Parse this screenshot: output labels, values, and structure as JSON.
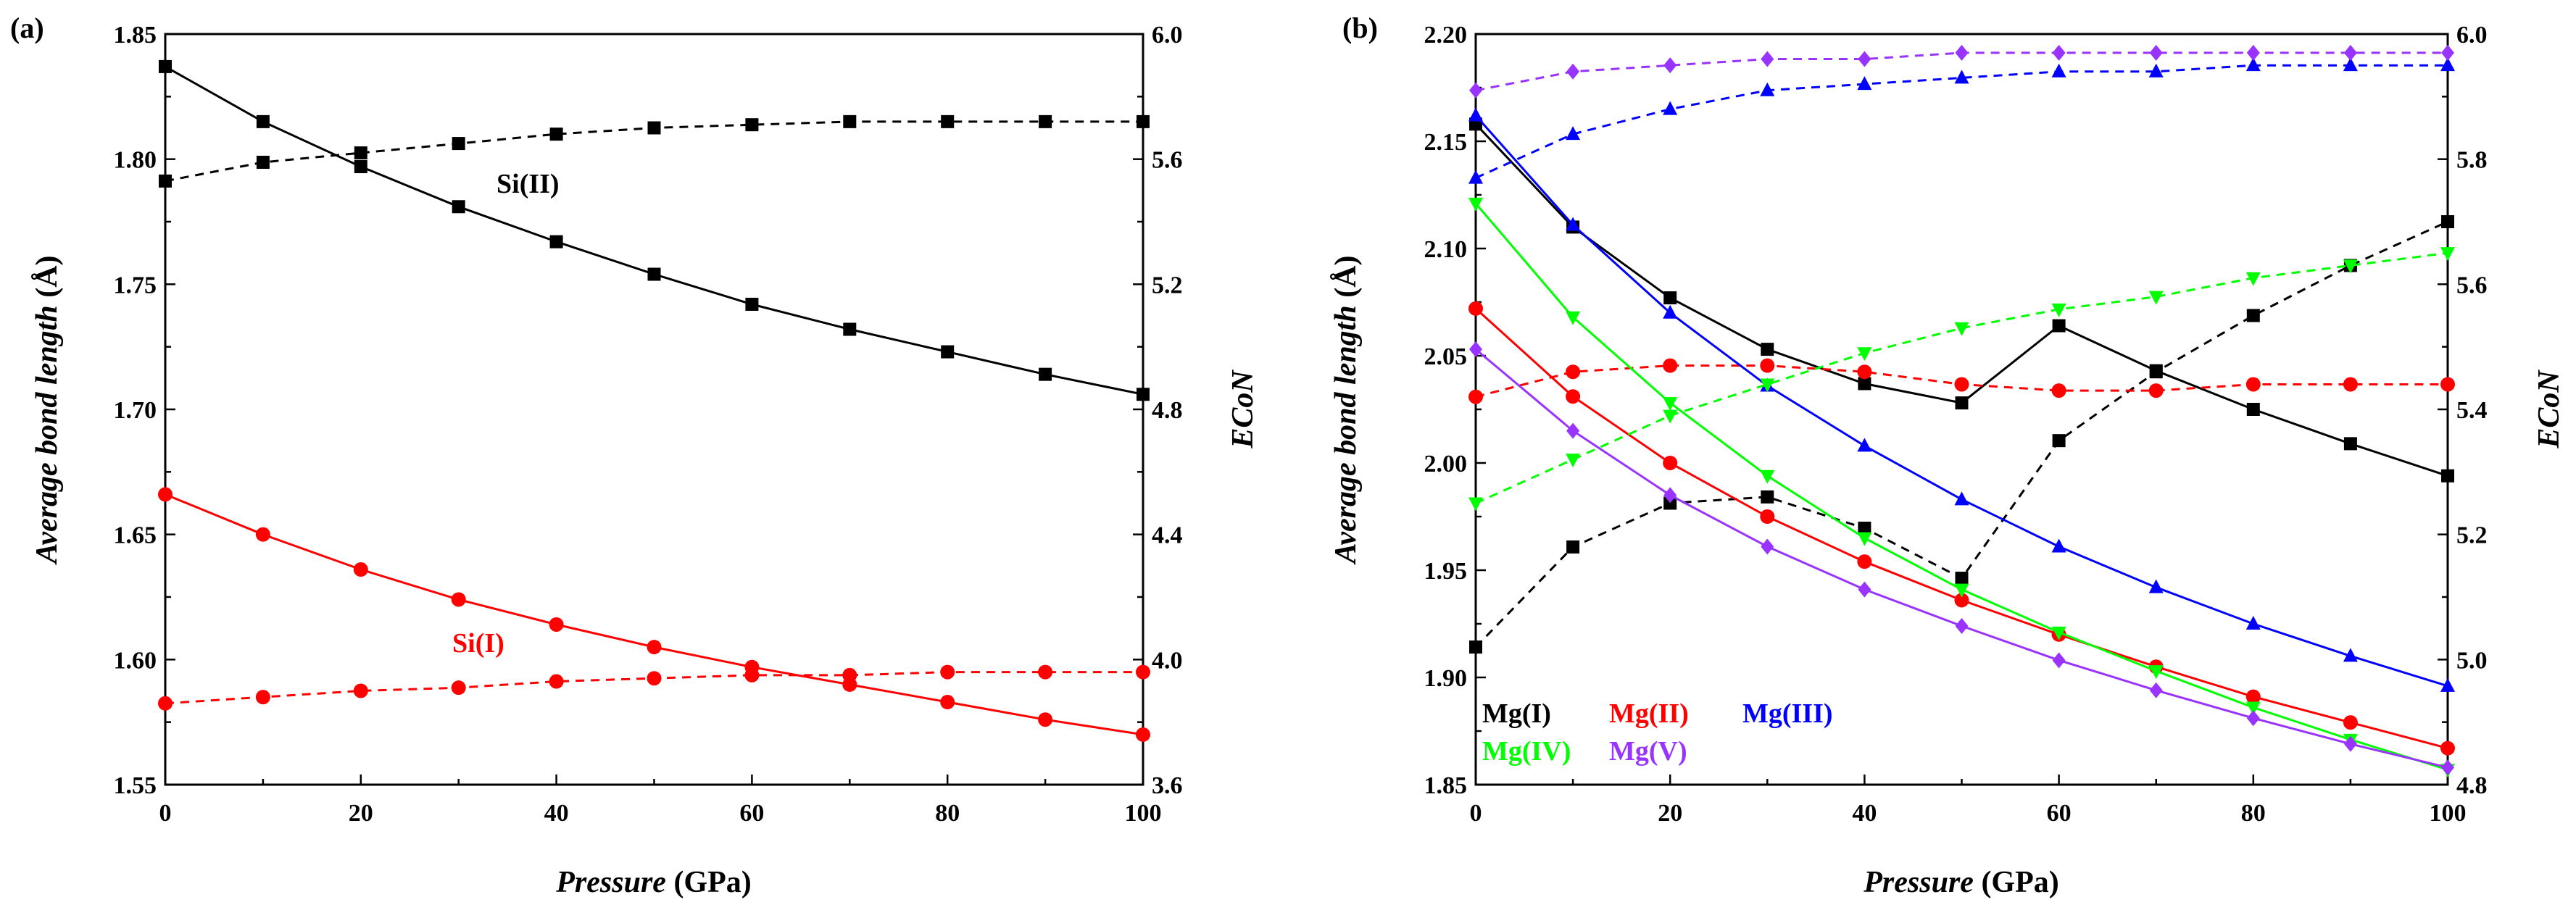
{
  "chart_data": [
    {
      "type": "line",
      "panel_label": "(a)",
      "xlabel_italic": "Pressure",
      "xlabel_unit": " (GPa)",
      "ylabel_left_italic": "Average bond length",
      "ylabel_left_unit": " (Å)",
      "ylabel_right": "ECoN",
      "xlim": [
        0,
        100
      ],
      "ylim_left": [
        1.55,
        1.85
      ],
      "ylim_right": [
        3.6,
        6.0
      ],
      "x_ticks": [
        "0",
        "20",
        "40",
        "60",
        "80",
        "100"
      ],
      "y_left_ticks": [
        "1.55",
        "1.60",
        "1.65",
        "1.70",
        "1.75",
        "1.80",
        "1.85"
      ],
      "y_right_ticks": [
        "3.6",
        "4.0",
        "4.4",
        "4.8",
        "5.2",
        "5.6",
        "6.0"
      ],
      "x": [
        0,
        10,
        20,
        30,
        40,
        50,
        60,
        70,
        80,
        90,
        100
      ],
      "series": [
        {
          "name": "Si(II) bond length",
          "axis": "left",
          "style": "solid",
          "color": "#000000",
          "marker": "square",
          "values": [
            1.837,
            1.815,
            1.797,
            1.781,
            1.767,
            1.754,
            1.742,
            1.732,
            1.723,
            1.714,
            1.706
          ]
        },
        {
          "name": "Si(II) ECoN",
          "axis": "right",
          "style": "dashed",
          "color": "#000000",
          "marker": "square",
          "values": [
            5.53,
            5.59,
            5.62,
            5.65,
            5.68,
            5.7,
            5.71,
            5.72,
            5.72,
            5.72,
            5.72
          ]
        },
        {
          "name": "Si(I) bond length",
          "axis": "left",
          "style": "solid",
          "color": "#ff0000",
          "marker": "circle",
          "values": [
            1.666,
            1.65,
            1.636,
            1.624,
            1.614,
            1.605,
            1.597,
            1.59,
            1.583,
            1.576,
            1.57
          ]
        },
        {
          "name": "Si(I) ECoN",
          "axis": "right",
          "style": "dashed",
          "color": "#ff0000",
          "marker": "circle",
          "values": [
            3.86,
            3.88,
            3.9,
            3.91,
            3.93,
            3.94,
            3.95,
            3.95,
            3.96,
            3.96,
            3.96
          ]
        }
      ],
      "annotations": [
        {
          "text": "Si(II)",
          "color": "#000000"
        },
        {
          "text": "Si(I)",
          "color": "#ff0000"
        }
      ]
    },
    {
      "type": "line",
      "panel_label": "(b)",
      "xlabel_italic": "Pressure",
      "xlabel_unit": " (GPa)",
      "ylabel_left_italic": "Average bond length",
      "ylabel_left_unit": " (Å)",
      "ylabel_right": "ECoN",
      "xlim": [
        0,
        100
      ],
      "ylim_left": [
        1.85,
        2.2
      ],
      "ylim_right": [
        4.8,
        6.0
      ],
      "x_ticks": [
        "0",
        "20",
        "40",
        "60",
        "80",
        "100"
      ],
      "y_left_ticks": [
        "1.85",
        "1.90",
        "1.95",
        "2.00",
        "2.05",
        "2.10",
        "2.15",
        "2.20"
      ],
      "y_right_ticks": [
        "4.8",
        "5.0",
        "5.2",
        "5.4",
        "5.6",
        "5.8",
        "6.0"
      ],
      "x": [
        0,
        10,
        20,
        30,
        40,
        50,
        60,
        70,
        80,
        90,
        100
      ],
      "series": [
        {
          "name": "Mg(I) bond length",
          "axis": "left",
          "style": "solid",
          "color": "#000000",
          "marker": "square",
          "values": [
            2.158,
            2.11,
            2.077,
            2.053,
            2.037,
            2.028,
            2.064,
            2.043,
            2.025,
            2.009,
            1.994
          ]
        },
        {
          "name": "Mg(I) ECoN",
          "axis": "right",
          "style": "dashed",
          "color": "#000000",
          "marker": "square",
          "values": [
            5.02,
            5.18,
            5.25,
            5.26,
            5.21,
            5.13,
            5.35,
            5.46,
            5.55,
            5.63,
            5.7
          ]
        },
        {
          "name": "Mg(II) bond length",
          "axis": "left",
          "style": "solid",
          "color": "#ff0000",
          "marker": "circle",
          "values": [
            2.072,
            2.031,
            2.0,
            1.975,
            1.954,
            1.936,
            1.92,
            1.905,
            1.891,
            1.879,
            1.867
          ]
        },
        {
          "name": "Mg(II) ECoN",
          "axis": "right",
          "style": "dashed",
          "color": "#ff0000",
          "marker": "circle",
          "values": [
            5.42,
            5.46,
            5.47,
            5.47,
            5.46,
            5.44,
            5.43,
            5.43,
            5.44,
            5.44,
            5.44
          ]
        },
        {
          "name": "Mg(III) bond length",
          "axis": "left",
          "style": "solid",
          "color": "#0000ff",
          "marker": "triangle-up",
          "values": [
            2.162,
            2.111,
            2.07,
            2.036,
            2.008,
            1.983,
            1.961,
            1.942,
            1.925,
            1.91,
            1.896
          ]
        },
        {
          "name": "Mg(III) ECoN",
          "axis": "right",
          "style": "dashed",
          "color": "#0000ff",
          "marker": "triangle-up",
          "values": [
            5.77,
            5.84,
            5.88,
            5.91,
            5.92,
            5.93,
            5.94,
            5.94,
            5.95,
            5.95,
            5.95
          ]
        },
        {
          "name": "Mg(IV) bond length",
          "axis": "left",
          "style": "solid",
          "color": "#00ff00",
          "marker": "triangle-down",
          "values": [
            2.121,
            2.068,
            2.028,
            1.994,
            1.965,
            1.941,
            1.921,
            1.903,
            1.886,
            1.871,
            1.857
          ]
        },
        {
          "name": "Mg(IV) ECoN",
          "axis": "right",
          "style": "dashed",
          "color": "#00ff00",
          "marker": "triangle-down",
          "values": [
            5.25,
            5.32,
            5.39,
            5.44,
            5.49,
            5.53,
            5.56,
            5.58,
            5.61,
            5.63,
            5.65
          ]
        },
        {
          "name": "Mg(V) bond length",
          "axis": "left",
          "style": "solid",
          "color": "#9933ff",
          "marker": "diamond",
          "values": [
            2.053,
            2.015,
            1.985,
            1.961,
            1.941,
            1.924,
            1.908,
            1.894,
            1.881,
            1.869,
            1.858
          ]
        },
        {
          "name": "Mg(V) ECoN",
          "axis": "right",
          "style": "dashed",
          "color": "#9933ff",
          "marker": "diamond",
          "values": [
            5.91,
            5.94,
            5.95,
            5.96,
            5.96,
            5.97,
            5.97,
            5.97,
            5.97,
            5.97,
            5.97
          ]
        }
      ],
      "legend": [
        {
          "text": "Mg(I)",
          "color": "#000000"
        },
        {
          "text": "Mg(II)",
          "color": "#ff0000"
        },
        {
          "text": "Mg(III)",
          "color": "#0000ff"
        },
        {
          "text": "Mg(IV)",
          "color": "#00ff00"
        },
        {
          "text": "Mg(V)",
          "color": "#9933ff"
        }
      ]
    }
  ]
}
